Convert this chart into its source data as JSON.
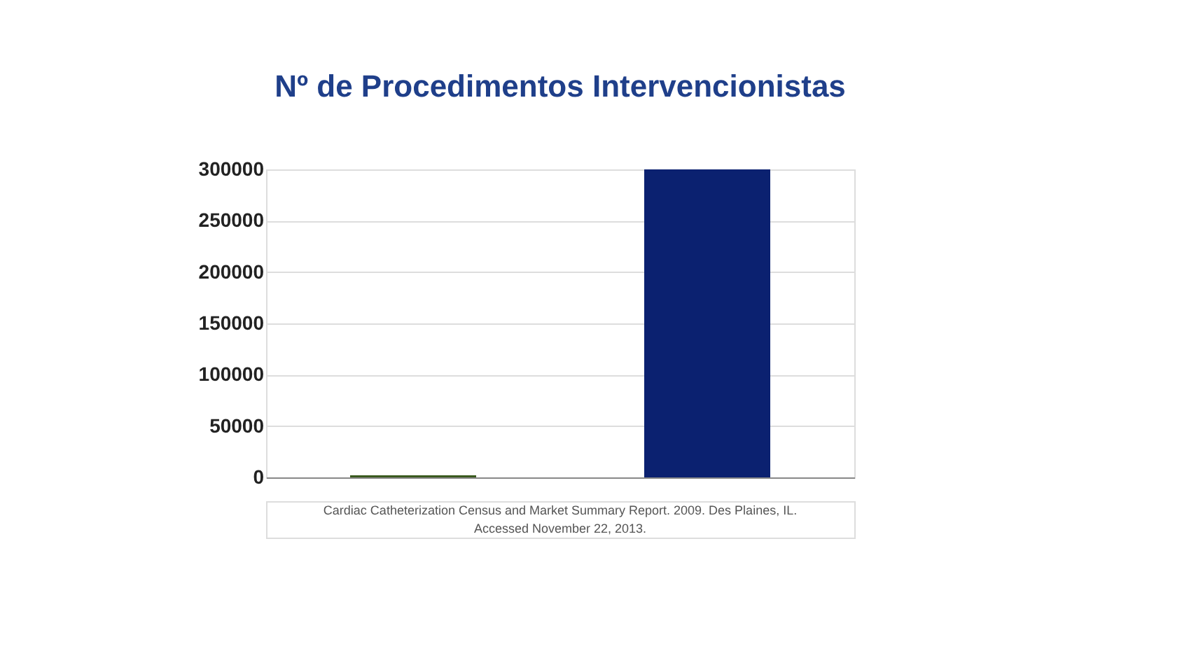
{
  "chart_data": {
    "type": "bar",
    "title": "Nº de Procedimentos Intervencionistas",
    "categories": [
      null,
      null
    ],
    "values": [
      2000,
      300000
    ],
    "colors": [
      "#3a5a1e",
      "#0b2170"
    ],
    "ylim": [
      0,
      300000
    ],
    "yticks": [
      0,
      50000,
      100000,
      150000,
      200000,
      250000,
      300000
    ],
    "grid": "y",
    "annotations": [
      "Cardiac Catheterization Census and Market Summary Report. 2009. Des Plaines, IL.",
      "Accessed November 22, 2013."
    ]
  }
}
